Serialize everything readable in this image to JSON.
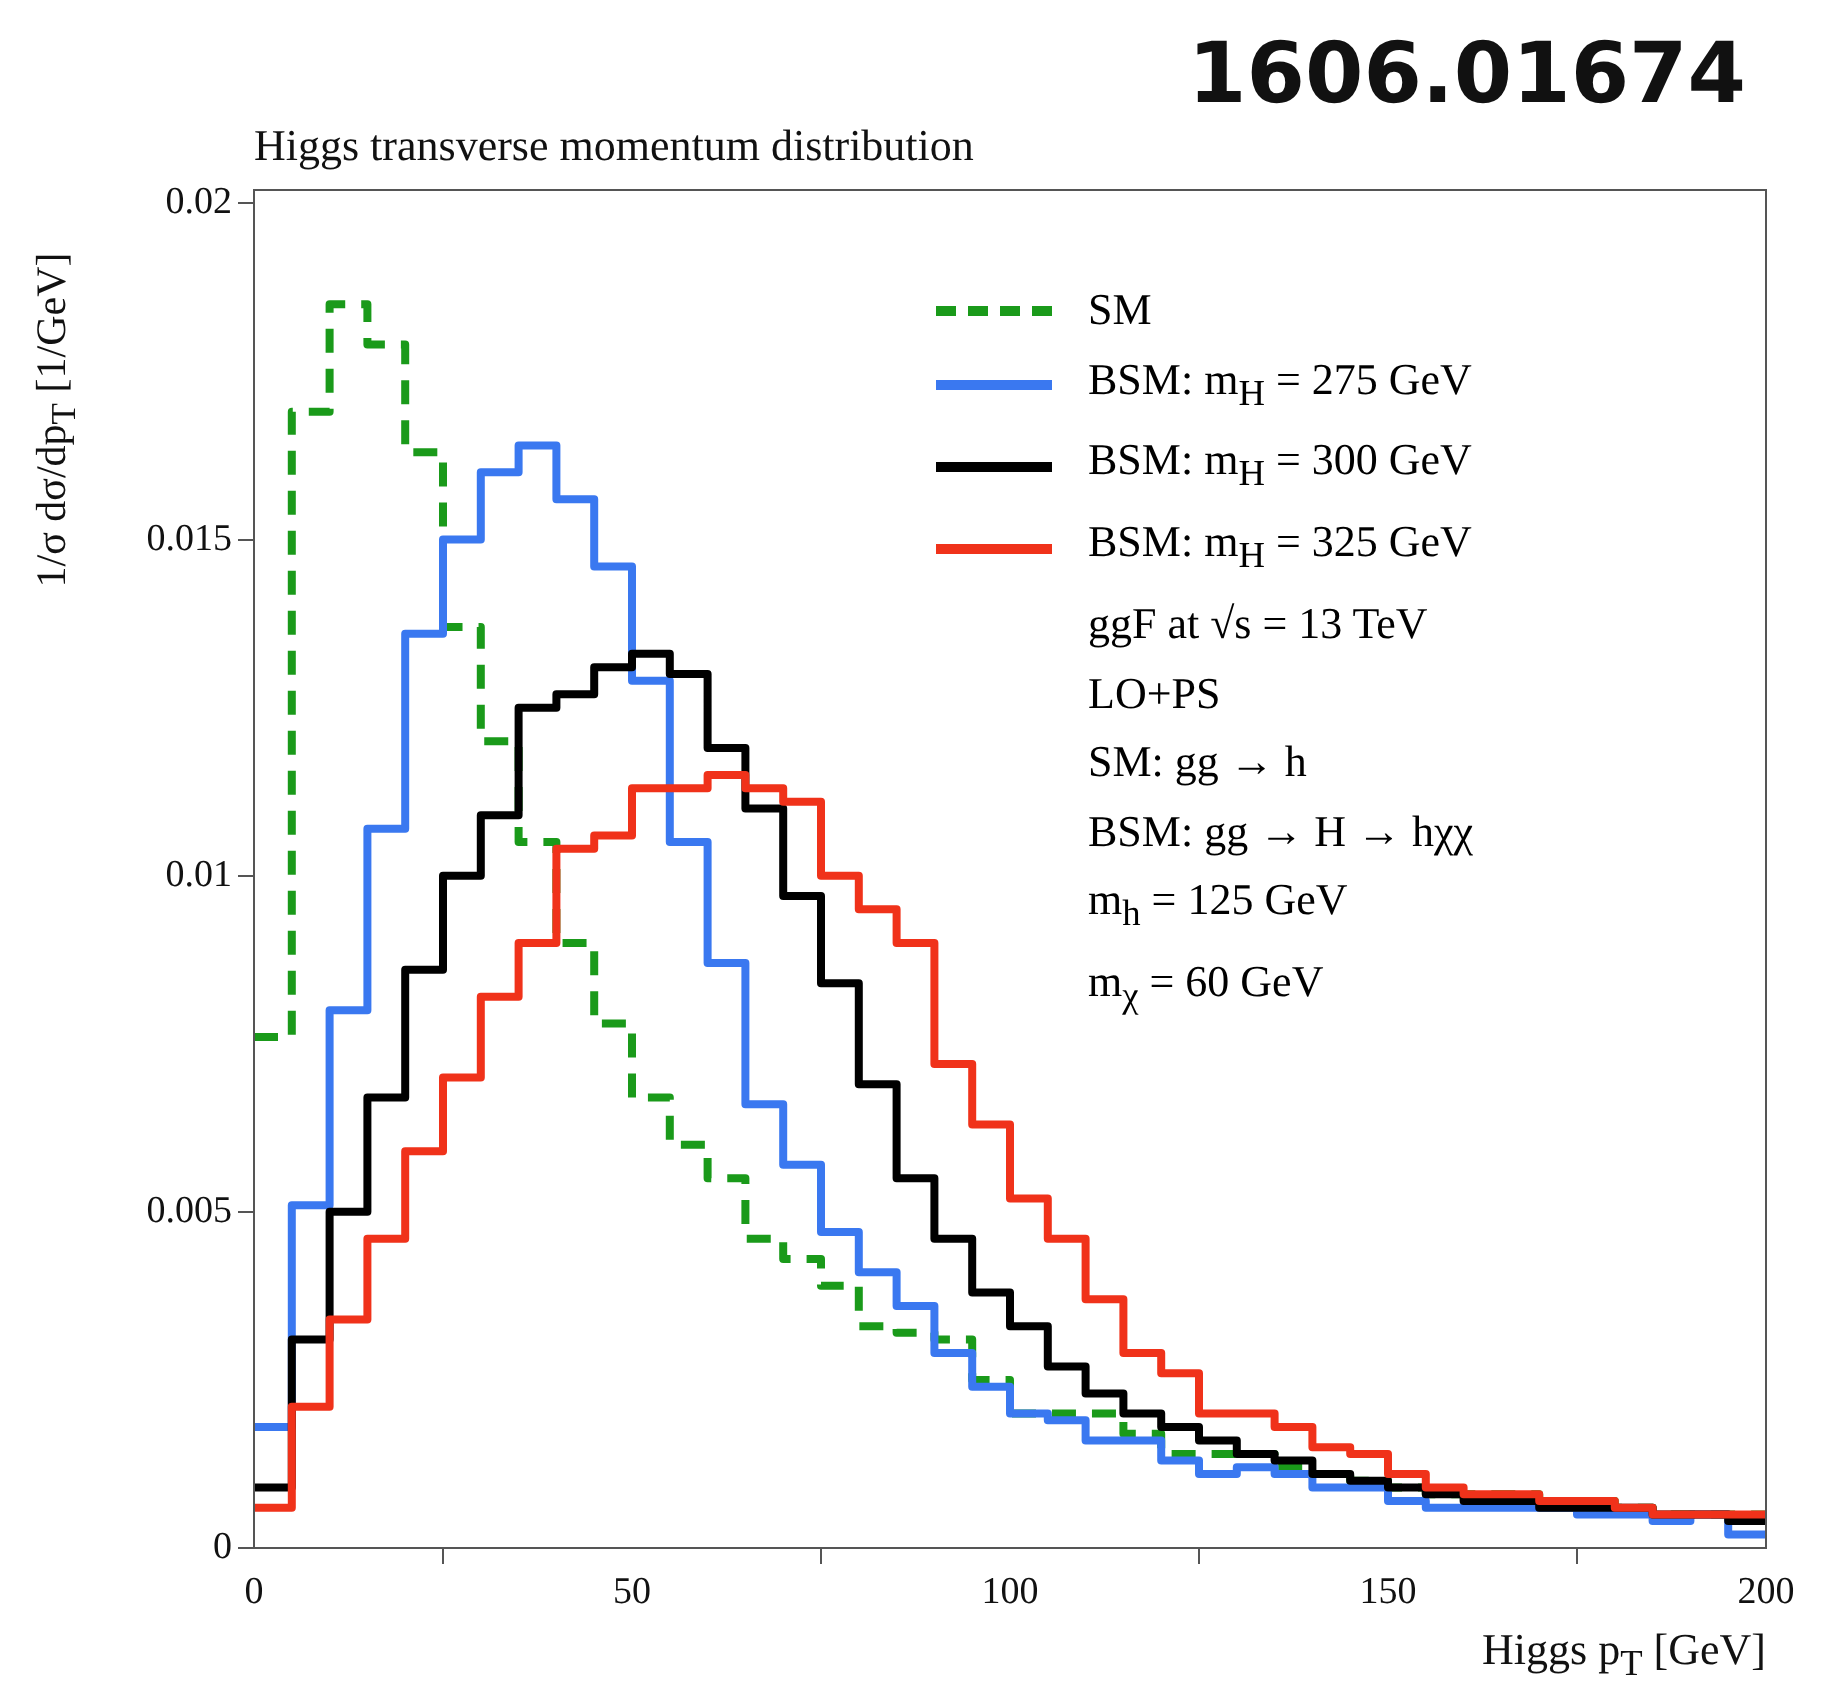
{
  "chart_data": {
    "type": "histogram",
    "title": "Higgs transverse momentum distribution",
    "xlabel": "Higgs p$_{T}$ [GeV]",
    "ylabel": "1/σ dσ/dp$_{T}$ [1/GeV]",
    "bins": [
      0,
      5,
      10,
      15,
      20,
      25,
      30,
      35,
      40,
      45,
      50,
      55,
      60,
      65,
      70,
      75,
      80,
      85,
      90,
      95,
      100,
      105,
      110,
      115,
      120,
      125,
      130,
      135,
      140,
      145,
      150,
      155,
      160,
      165,
      170,
      175,
      180,
      185,
      190,
      195,
      200
    ],
    "series": [
      {
        "name": "SM",
        "color": "#1a9a1a",
        "line_style": "dashed",
        "values": [
          0.0076,
          0.0169,
          0.0185,
          0.0179,
          0.0163,
          0.0137,
          0.012,
          0.0105,
          0.009,
          0.0078,
          0.0067,
          0.006,
          0.0055,
          0.0046,
          0.0043,
          0.0039,
          0.0033,
          0.0032,
          0.0031,
          0.0025,
          0.002,
          0.002,
          0.002,
          0.0017,
          0.0014,
          0.0014,
          0.0014,
          0.0012,
          0.0011,
          0.001,
          0.0009,
          0.0008,
          0.0008,
          0.0008,
          0.0007,
          0.0007,
          0.0006,
          0.0005,
          0.0005,
          0.0005
        ]
      },
      {
        "name": "BSM: m$_{H}$ = 275 GeV",
        "color": "#3a78f0",
        "values": [
          0.0018,
          0.0051,
          0.008,
          0.0107,
          0.0136,
          0.015,
          0.016,
          0.0164,
          0.0156,
          0.0146,
          0.0129,
          0.0105,
          0.0087,
          0.0066,
          0.0057,
          0.0047,
          0.0041,
          0.0036,
          0.0029,
          0.0024,
          0.002,
          0.0019,
          0.0016,
          0.0016,
          0.0013,
          0.0011,
          0.0012,
          0.0011,
          0.0009,
          0.0009,
          0.0007,
          0.0006,
          0.0006,
          0.0006,
          0.0006,
          0.0005,
          0.0005,
          0.0004,
          0.0005,
          0.0002
        ]
      },
      {
        "name": "BSM: m$_{H}$ = 300 GeV",
        "color": "#000000",
        "values": [
          0.0009,
          0.0031,
          0.005,
          0.0067,
          0.0086,
          0.01,
          0.0109,
          0.0125,
          0.0127,
          0.0131,
          0.0133,
          0.013,
          0.0119,
          0.011,
          0.0097,
          0.0084,
          0.0069,
          0.0055,
          0.0046,
          0.0038,
          0.0033,
          0.0027,
          0.0023,
          0.002,
          0.0018,
          0.0016,
          0.0014,
          0.0013,
          0.0011,
          0.001,
          0.0009,
          0.0008,
          0.0007,
          0.0007,
          0.0006,
          0.0006,
          0.0006,
          0.0005,
          0.0005,
          0.0004
        ]
      },
      {
        "name": "BSM: m$_{H}$ = 325 GeV",
        "color": "#f0321a",
        "values": [
          0.0006,
          0.0021,
          0.0034,
          0.0046,
          0.0059,
          0.007,
          0.0082,
          0.009,
          0.0104,
          0.0106,
          0.0113,
          0.0113,
          0.0115,
          0.0113,
          0.0111,
          0.01,
          0.0095,
          0.009,
          0.0072,
          0.0063,
          0.0052,
          0.0046,
          0.0037,
          0.0029,
          0.0026,
          0.002,
          0.002,
          0.0018,
          0.0015,
          0.0014,
          0.0011,
          0.0009,
          0.0008,
          0.0008,
          0.0007,
          0.0007,
          0.0006,
          0.0005,
          0.0005,
          0.0005
        ]
      }
    ],
    "xlim": [
      0,
      200
    ],
    "xticks": [
      0,
      50,
      100,
      150,
      200
    ],
    "ylim": [
      0,
      0.0202
    ],
    "yticks": [
      0,
      0.005,
      0.01,
      0.015,
      0.02
    ],
    "legend": "top right",
    "annotations": [
      "ggF at √s = 13 TeV",
      "LO+PS",
      "SM: gg → h",
      "BSM: gg → H → hχχ",
      "m$_{h}$ = 125 GeV",
      "m$_{χ}$ = 60 GeV",
      "1606.01674"
    ]
  }
}
